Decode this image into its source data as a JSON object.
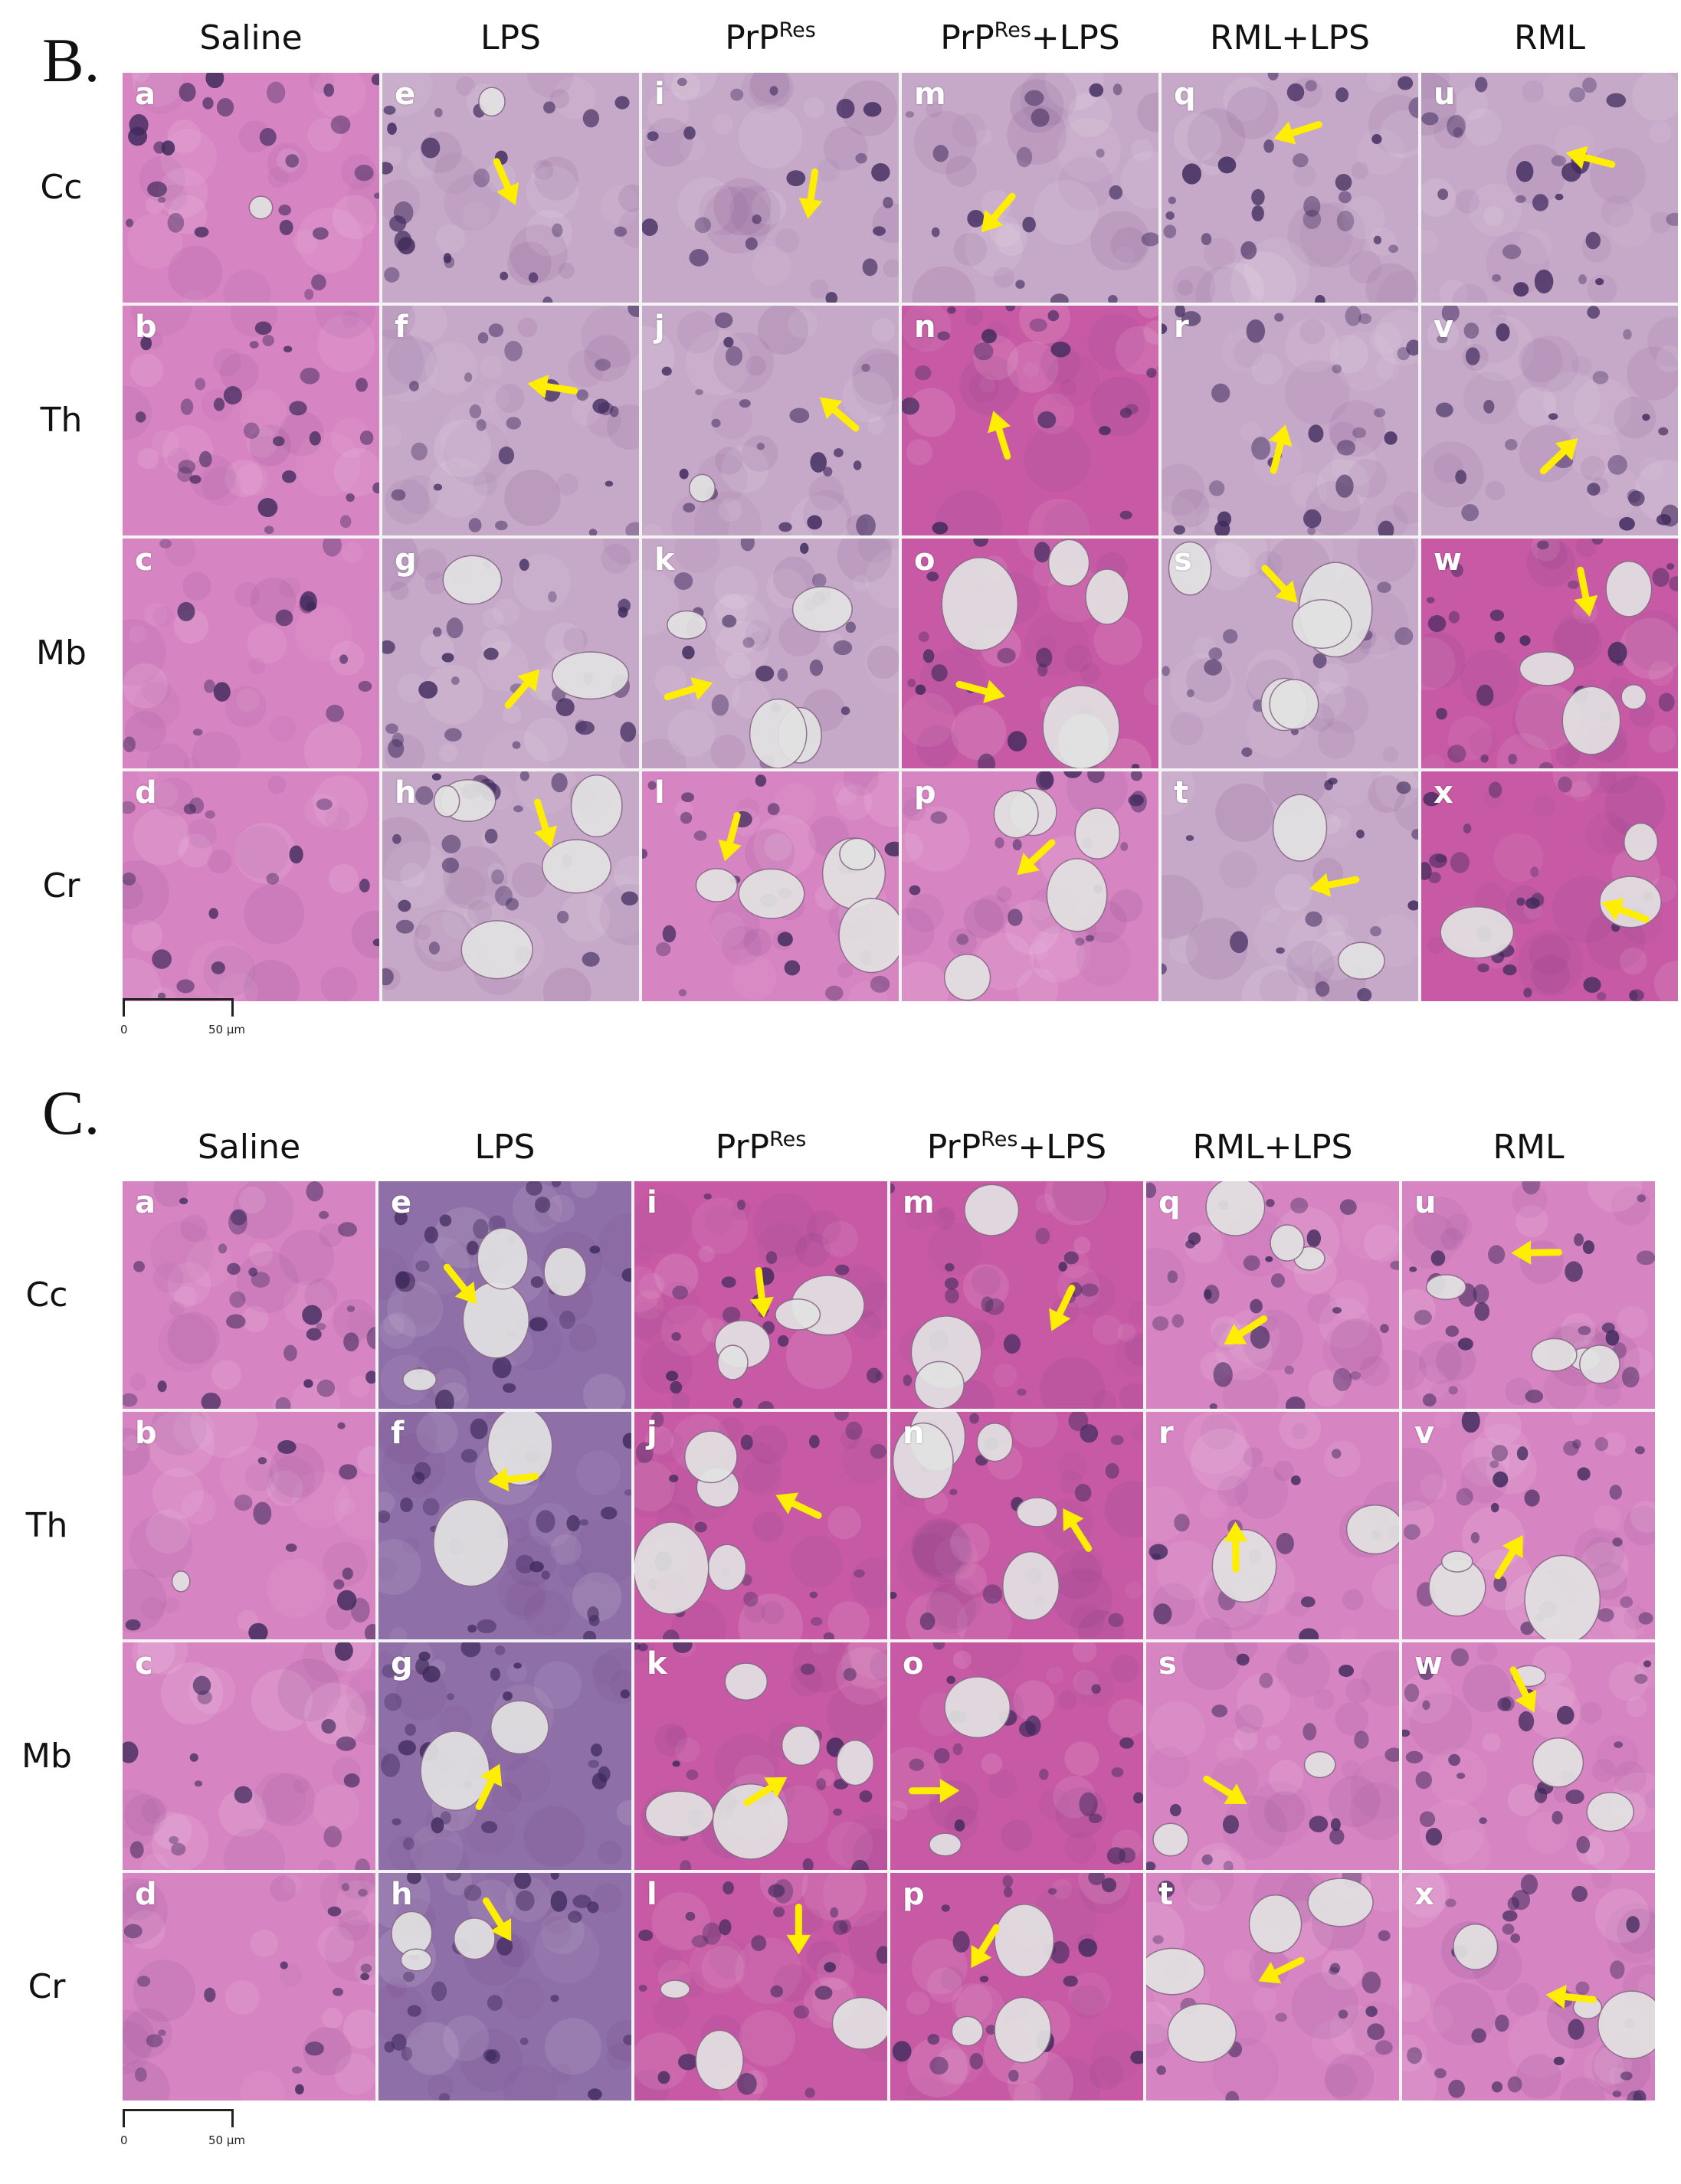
{
  "panels": [
    {
      "id": "B",
      "label": "B.",
      "columns": [
        {
          "base": "Saline",
          "sup": "",
          "tail": ""
        },
        {
          "base": "LPS",
          "sup": "",
          "tail": ""
        },
        {
          "base": "PrP",
          "sup": "Res",
          "tail": ""
        },
        {
          "base": "PrP",
          "sup": "Res",
          "tail": "+LPS"
        },
        {
          "base": "RML+LPS",
          "sup": "",
          "tail": ""
        },
        {
          "base": "RML",
          "sup": "",
          "tail": ""
        }
      ],
      "rows": [
        "Cc",
        "Th",
        "Mb",
        "Cr"
      ],
      "tile_letters": [
        [
          "a",
          "e",
          "i",
          "m",
          "q",
          "u"
        ],
        [
          "b",
          "f",
          "j",
          "n",
          "r",
          "v"
        ],
        [
          "c",
          "g",
          "k",
          "o",
          "s",
          "w"
        ],
        [
          "d",
          "h",
          "l",
          "p",
          "t",
          "x"
        ]
      ],
      "scale_zero": "0",
      "scale_value": "50 µm"
    },
    {
      "id": "C",
      "label": "C.",
      "columns": [
        {
          "base": "Saline",
          "sup": "",
          "tail": ""
        },
        {
          "base": "LPS",
          "sup": "",
          "tail": ""
        },
        {
          "base": "PrP",
          "sup": "Res",
          "tail": ""
        },
        {
          "base": "PrP",
          "sup": "Res",
          "tail": "+LPS"
        },
        {
          "base": "RML+LPS",
          "sup": "",
          "tail": ""
        },
        {
          "base": "RML",
          "sup": "",
          "tail": ""
        }
      ],
      "rows": [
        "Cc",
        "Th",
        "Mb",
        "Cr"
      ],
      "tile_letters": [
        [
          "a",
          "e",
          "i",
          "m",
          "q",
          "u"
        ],
        [
          "b",
          "f",
          "j",
          "n",
          "r",
          "v"
        ],
        [
          "c",
          "g",
          "k",
          "o",
          "s",
          "w"
        ],
        [
          "d",
          "h",
          "l",
          "p",
          "t",
          "x"
        ]
      ],
      "scale_zero": "0",
      "scale_value": "50 µm"
    }
  ],
  "colors": {
    "arrow": "#ffee00",
    "stain_pink": "#d784c2",
    "stain_grey_pink": "#c6a8c8",
    "stain_purple": "#8f6fa8",
    "stain_magenta": "#c85aa5",
    "nucleus": "#3f2a5c",
    "vacuole": "#e2e2e2"
  }
}
